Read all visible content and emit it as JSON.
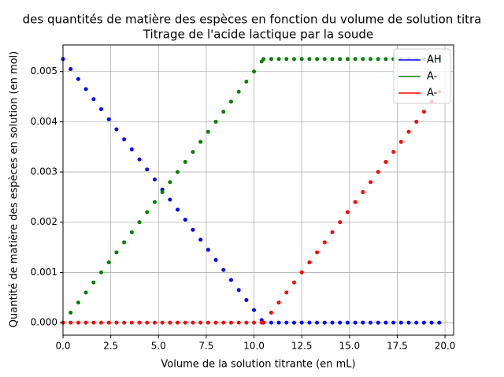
{
  "chart_data": {
    "type": "scatter",
    "title": "des quantités de matière des espèces en fonction du volume de solution titra",
    "subtitle": "Titrage de l'acide lactique par la soude",
    "x_label": "Volume de la solution titrante (en mL)",
    "y_label": "Quantité de matière des espèces en solution (en mol)",
    "x": [
      0,
      0.4,
      0.8,
      1.2,
      1.6,
      2.0,
      2.4,
      2.8,
      3.2,
      3.6,
      4.0,
      4.4,
      4.8,
      5.2,
      5.6,
      6.0,
      6.4,
      6.8,
      7.2,
      7.6,
      8.0,
      8.4,
      8.8,
      9.2,
      9.6,
      10.0,
      10.4,
      10.5,
      10.9,
      11.3,
      11.7,
      12.1,
      12.5,
      12.9,
      13.3,
      13.7,
      14.1,
      14.5,
      14.9,
      15.3,
      15.7,
      16.1,
      16.5,
      16.9,
      17.3,
      17.7,
      18.1,
      18.5,
      18.9,
      19.3,
      19.7
    ],
    "series": [
      {
        "name": "AH",
        "color": "#0000ff",
        "values": [
          0.00525,
          0.00505,
          0.00485,
          0.00465,
          0.00445,
          0.00425,
          0.00405,
          0.00385,
          0.00365,
          0.00345,
          0.00325,
          0.00305,
          0.00285,
          0.00265,
          0.00245,
          0.00225,
          0.00205,
          0.00185,
          0.00165,
          0.00145,
          0.00125,
          0.00105,
          0.00085,
          0.00065,
          0.00045,
          0.00025,
          5e-05,
          0,
          0,
          0,
          0,
          0,
          0,
          0,
          0,
          0,
          0,
          0,
          0,
          0,
          0,
          0,
          0,
          0,
          0,
          0,
          0,
          0,
          0,
          0,
          0
        ]
      },
      {
        "name": "A-",
        "color": "#008000",
        "values": [
          0,
          0.0002,
          0.0004,
          0.0006,
          0.0008,
          0.001,
          0.0012,
          0.0014,
          0.0016,
          0.0018,
          0.002,
          0.0022,
          0.0024,
          0.0026,
          0.0028,
          0.003,
          0.0032,
          0.0034,
          0.0036,
          0.0038,
          0.004,
          0.0042,
          0.0044,
          0.0046,
          0.0048,
          0.005,
          0.0052,
          0.00525,
          0.00525,
          0.00525,
          0.00525,
          0.00525,
          0.00525,
          0.00525,
          0.00525,
          0.00525,
          0.00525,
          0.00525,
          0.00525,
          0.00525,
          0.00525,
          0.00525,
          0.00525,
          0.00525,
          0.00525,
          0.00525,
          0.00525,
          0.00525,
          0.00525,
          0.00525,
          0.00525
        ]
      },
      {
        "name": "A-",
        "color": "#ff0000",
        "values": [
          0,
          0,
          0,
          0,
          0,
          0,
          0,
          0,
          0,
          0,
          0,
          0,
          0,
          0,
          0,
          0,
          0,
          0,
          0,
          0,
          0,
          0,
          0,
          0,
          0,
          0,
          0,
          0,
          0.0002,
          0.0004,
          0.0006,
          0.0008,
          0.001,
          0.0012,
          0.0014,
          0.0016,
          0.0018,
          0.002,
          0.0022,
          0.0024,
          0.0026,
          0.0028,
          0.003,
          0.0032,
          0.0034,
          0.0036,
          0.0038,
          0.004,
          0.0042,
          0.0044,
          0.0046
        ]
      }
    ],
    "xlim": [
      0,
      20.45
    ],
    "ylim": [
      -0.00025,
      0.00553
    ],
    "xticks": [
      {
        "value": 0,
        "label": "0.0"
      },
      {
        "value": 2.5,
        "label": "2.5"
      },
      {
        "value": 5,
        "label": "5.0"
      },
      {
        "value": 7.5,
        "label": "7.5"
      },
      {
        "value": 10,
        "label": "10.0"
      },
      {
        "value": 12.5,
        "label": "12.5"
      },
      {
        "value": 15,
        "label": "15.0"
      },
      {
        "value": 17.5,
        "label": "17.5"
      },
      {
        "value": 20,
        "label": "20.0"
      }
    ],
    "yticks": [
      {
        "value": 0,
        "label": "0.000"
      },
      {
        "value": 0.001,
        "label": "0.001"
      },
      {
        "value": 0.002,
        "label": "0.002"
      },
      {
        "value": 0.003,
        "label": "0.003"
      },
      {
        "value": 0.004,
        "label": "0.004"
      },
      {
        "value": 0.005,
        "label": "0.005"
      }
    ],
    "grid": true,
    "legend": "upper right"
  }
}
